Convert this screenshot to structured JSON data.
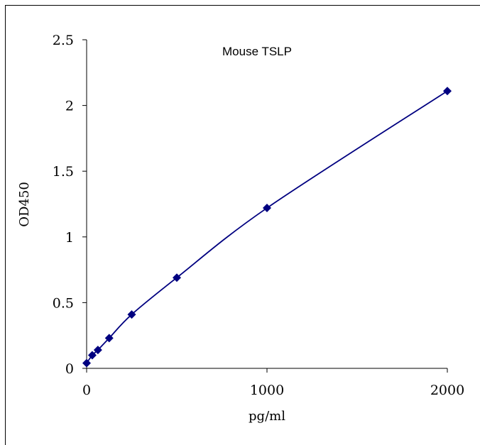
{
  "chart_data": {
    "type": "scatter",
    "title": "Mouse TSLP",
    "xlabel": "pg/ml",
    "ylabel": "OD450",
    "xlim": [
      0,
      2000
    ],
    "ylim": [
      0,
      2.5
    ],
    "x_ticks": [
      "0",
      "1000",
      "2000"
    ],
    "y_ticks": [
      "0",
      "0.5",
      "1",
      "1.5",
      "2",
      "2.5"
    ],
    "series": [
      {
        "x": [
          0,
          31.25,
          62.5,
          125,
          250,
          500,
          1000,
          2000
        ],
        "y": [
          0.04,
          0.1,
          0.14,
          0.23,
          0.41,
          0.69,
          1.22,
          2.11
        ],
        "marker": "diamond",
        "line": "smooth"
      }
    ],
    "grid": false,
    "colors": {
      "series": "#000080",
      "axis": "#000000"
    }
  }
}
